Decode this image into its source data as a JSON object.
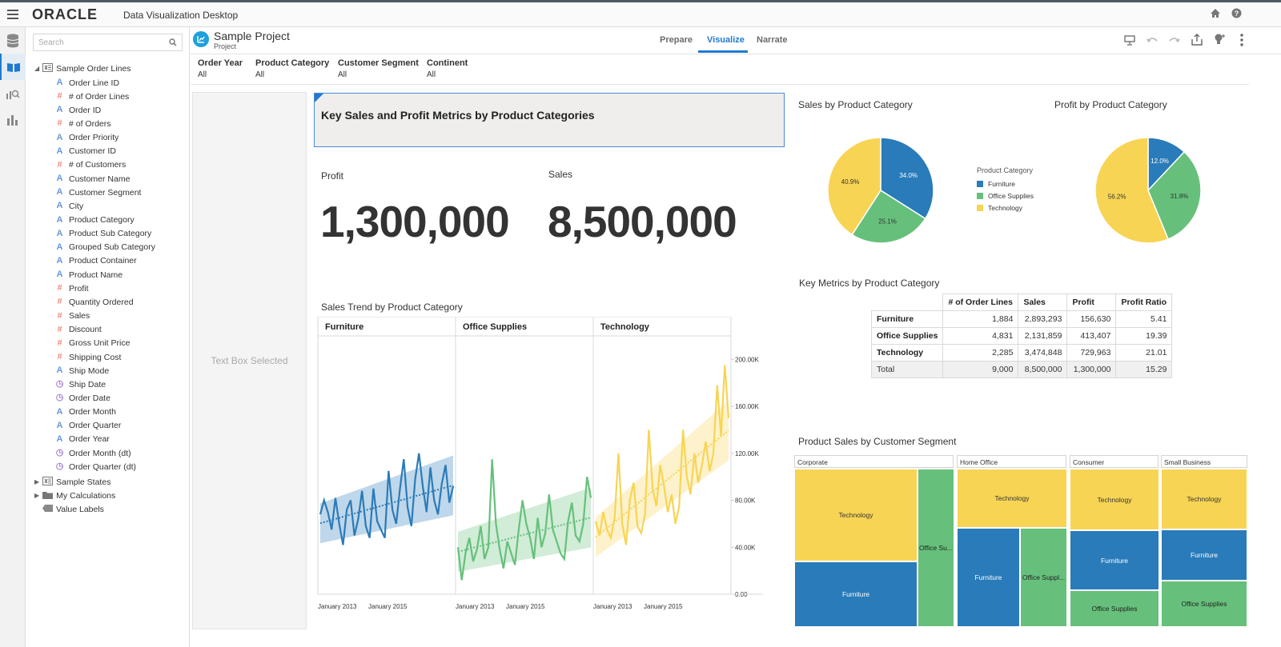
{
  "app": {
    "brand": "ORACLE",
    "title": "Data Visualization Desktop"
  },
  "search": {
    "placeholder": "Search"
  },
  "tree": {
    "root": "Sample Order Lines",
    "items": [
      {
        "label": "Order Line ID",
        "kind": "a"
      },
      {
        "label": "# of Order Lines",
        "kind": "h"
      },
      {
        "label": "Order ID",
        "kind": "a"
      },
      {
        "label": "# of Orders",
        "kind": "h"
      },
      {
        "label": "Order Priority",
        "kind": "a"
      },
      {
        "label": "Customer ID",
        "kind": "a"
      },
      {
        "label": "# of Customers",
        "kind": "h"
      },
      {
        "label": "Customer Name",
        "kind": "a"
      },
      {
        "label": "Customer Segment",
        "kind": "a"
      },
      {
        "label": "City",
        "kind": "a"
      },
      {
        "label": "Product Category",
        "kind": "a"
      },
      {
        "label": "Product Sub Category",
        "kind": "a"
      },
      {
        "label": "Grouped Sub Category",
        "kind": "a"
      },
      {
        "label": "Product Container",
        "kind": "a"
      },
      {
        "label": "Product Name",
        "kind": "a"
      },
      {
        "label": "Profit",
        "kind": "h"
      },
      {
        "label": "Quantity Ordered",
        "kind": "h"
      },
      {
        "label": "Sales",
        "kind": "h"
      },
      {
        "label": "Discount",
        "kind": "h"
      },
      {
        "label": "Gross Unit Price",
        "kind": "h"
      },
      {
        "label": "Shipping Cost",
        "kind": "h"
      },
      {
        "label": "Ship Mode",
        "kind": "a"
      },
      {
        "label": "Ship Date",
        "kind": "c"
      },
      {
        "label": "Order Date",
        "kind": "c"
      },
      {
        "label": "Order Month",
        "kind": "a"
      },
      {
        "label": "Order Quarter",
        "kind": "a"
      },
      {
        "label": "Order Year",
        "kind": "a"
      },
      {
        "label": "Order Month (dt)",
        "kind": "c"
      },
      {
        "label": "Order Quarter (dt)",
        "kind": "c"
      }
    ],
    "bottom": [
      {
        "label": "Sample States",
        "kind": "ds"
      },
      {
        "label": "My Calculations",
        "kind": "folder"
      },
      {
        "label": "Value Labels",
        "kind": "tag"
      }
    ]
  },
  "project": {
    "name": "Sample Project",
    "type": "Project"
  },
  "tabs": [
    "Prepare",
    "Visualize",
    "Narrate"
  ],
  "active_tab": "Visualize",
  "filters": [
    {
      "label": "Order Year",
      "value": "All"
    },
    {
      "label": "Product Category",
      "value": "All"
    },
    {
      "label": "Customer Segment",
      "value": "All"
    },
    {
      "label": "Continent",
      "value": "All"
    }
  ],
  "sidebox": {
    "text": "Text Box Selected"
  },
  "title_text": "Key Sales and Profit Metrics by Product Categories",
  "kpis": {
    "profit": {
      "label": "Profit",
      "value": "1,300,000"
    },
    "sales": {
      "label": "Sales",
      "value": "8,500,000"
    }
  },
  "colors": {
    "furniture": "#2a7bb9",
    "office": "#66c07b",
    "technology": "#f8d454",
    "accent": "#1f7ad1"
  },
  "legend": {
    "title": "Product Category",
    "items": [
      "Furniture",
      "Office Supplies",
      "Technology"
    ]
  },
  "key_metrics": {
    "title": "Key Metrics by Product Category",
    "headers": [
      "",
      "# of Order Lines",
      "Sales",
      "Profit",
      "Profit Ratio"
    ],
    "rows": [
      [
        "Furniture",
        "1,884",
        "2,893,293",
        "156,630",
        "5.41"
      ],
      [
        "Office Supplies",
        "4,831",
        "2,131,859",
        "413,407",
        "19.39"
      ],
      [
        "Technology",
        "2,285",
        "3,474,848",
        "729,963",
        "21.01"
      ],
      [
        "Total",
        "9,000",
        "8,500,000",
        "1,300,000",
        "15.29"
      ]
    ]
  },
  "treemap": {
    "title": "Product Sales by Customer Segment",
    "segments": [
      {
        "name": "Corporate",
        "cells": [
          "Technology",
          "Furniture",
          "Office Su..."
        ]
      },
      {
        "name": "Home Office",
        "cells": [
          "Technology",
          "Furniture",
          "Office Suppl..."
        ]
      },
      {
        "name": "Consumer",
        "cells": [
          "Technology",
          "Furniture",
          "Office Supplies"
        ]
      },
      {
        "name": "Small Business",
        "cells": [
          "Technology",
          "Furniture",
          "Office Supplies"
        ]
      }
    ]
  },
  "chart_data": [
    {
      "type": "pie",
      "title": "Sales by Product Category",
      "categories": [
        "Furniture",
        "Office Supplies",
        "Technology"
      ],
      "values": [
        34.0,
        25.1,
        40.9
      ],
      "labels": [
        "34.0%",
        "25.1%",
        "40.9%"
      ]
    },
    {
      "type": "pie",
      "title": "Profit by Product Category",
      "categories": [
        "Furniture",
        "Office Supplies",
        "Technology"
      ],
      "values": [
        12.0,
        31.8,
        56.2
      ],
      "labels": [
        "12.0%",
        "31.8%",
        "56.2%"
      ]
    },
    {
      "type": "line",
      "title": "Sales Trend by Product Category",
      "panels": [
        "Furniture",
        "Office Supplies",
        "Technology"
      ],
      "x_tick_labels": [
        "January 2013",
        "January 2015"
      ],
      "y_tick_labels": [
        "0.00",
        "40.00K",
        "80.00K",
        "120.00K",
        "160.00K",
        "200.00K"
      ],
      "ylim": [
        0,
        220000
      ],
      "trend_lines": true,
      "series": [
        {
          "name": "Furniture",
          "values": [
            68000,
            80000,
            70000,
            55000,
            82000,
            60000,
            42000,
            72000,
            80000,
            50000,
            64000,
            88000,
            58000,
            48000,
            90000,
            62000,
            55000,
            48000,
            105000,
            72000,
            60000,
            90000,
            115000,
            74000,
            58000,
            98000,
            120000,
            92000,
            70000,
            108000,
            80000,
            68000,
            94000,
            110000,
            78000,
            92000
          ]
        },
        {
          "name": "Office Supplies",
          "values": [
            40000,
            12000,
            35000,
            48000,
            28000,
            38000,
            58000,
            30000,
            40000,
            115000,
            60000,
            38000,
            22000,
            45000,
            35000,
            25000,
            55000,
            80000,
            60000,
            48000,
            30000,
            65000,
            40000,
            52000,
            85000,
            55000,
            45000,
            35000,
            30000,
            62000,
            78000,
            50000,
            45000,
            60000,
            100000,
            82000
          ]
        },
        {
          "name": "Technology",
          "values": [
            62000,
            50000,
            70000,
            55000,
            48000,
            65000,
            120000,
            60000,
            42000,
            80000,
            95000,
            58000,
            52000,
            68000,
            140000,
            90000,
            75000,
            110000,
            92000,
            70000,
            85000,
            60000,
            75000,
            140000,
            100000,
            85000,
            120000,
            95000,
            110000,
            130000,
            105000,
            120000,
            178000,
            135000,
            195000,
            150000
          ]
        }
      ]
    }
  ]
}
